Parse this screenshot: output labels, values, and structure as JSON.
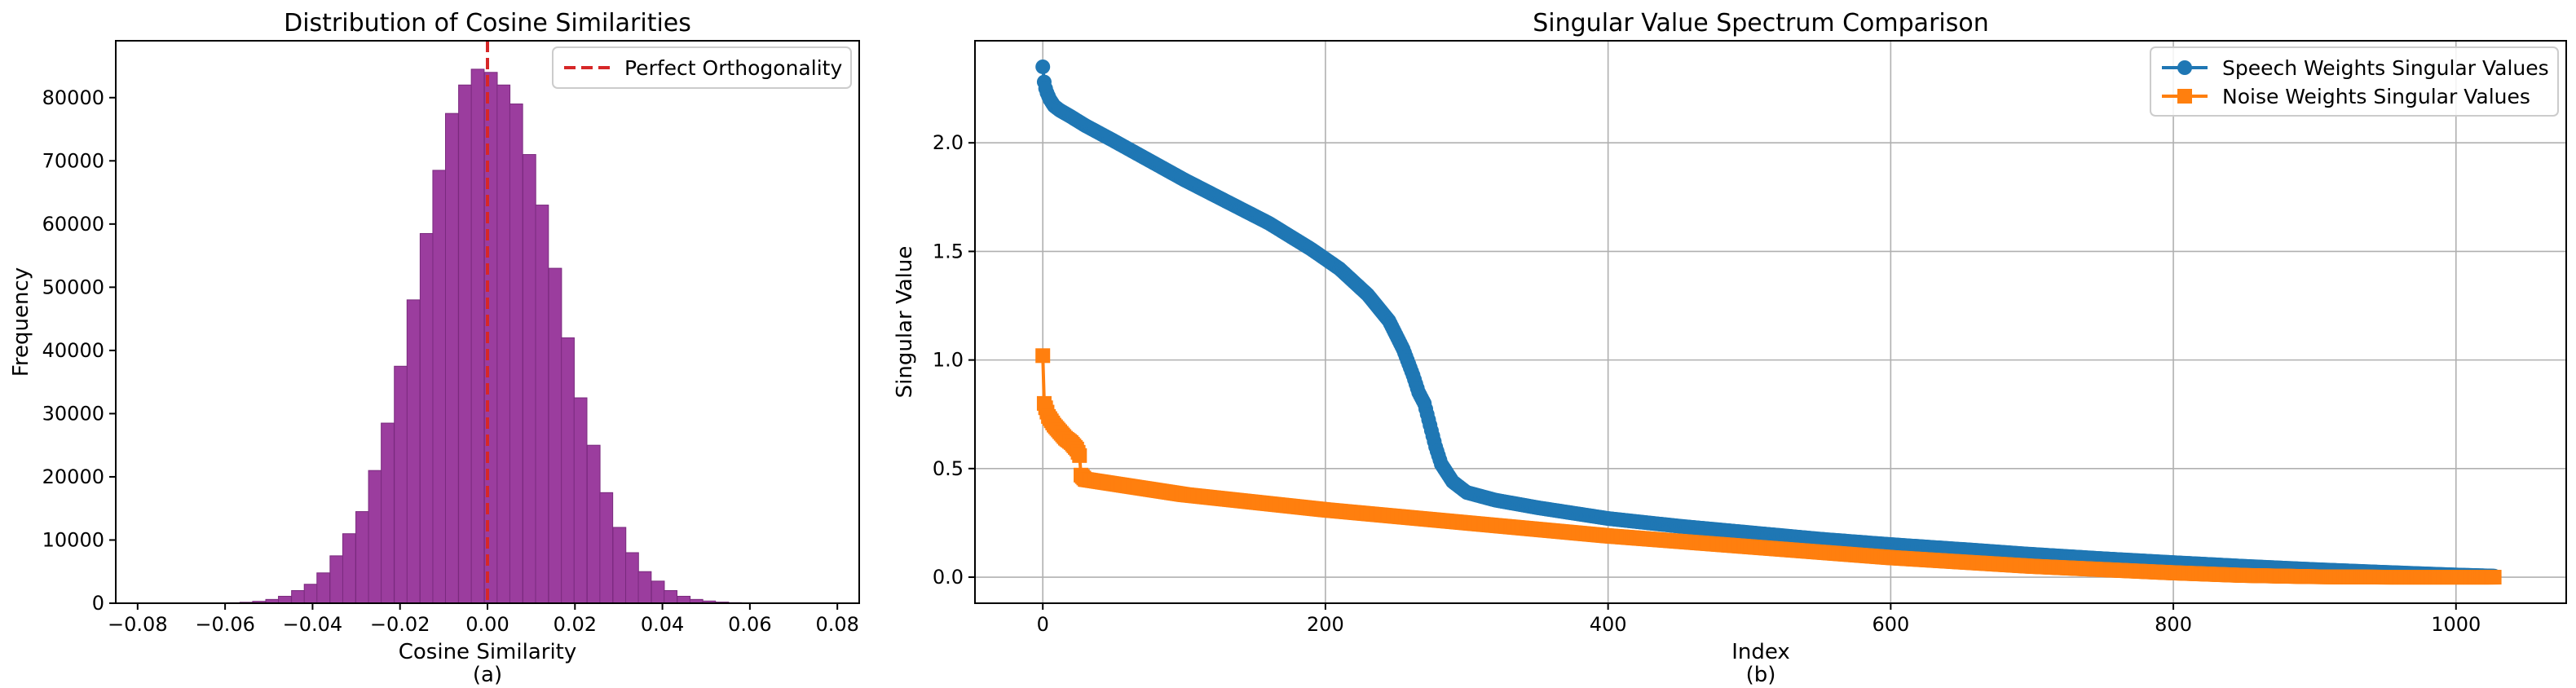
{
  "chart_data": [
    {
      "id": "a",
      "type": "bar",
      "title": "Distribution of Cosine Similarities",
      "xlabel": "Cosine Similarity",
      "caption": "(a)",
      "ylabel": "Frequency",
      "xlim": [
        -0.085,
        0.085
      ],
      "ylim": [
        0,
        89000
      ],
      "xticks": [
        -0.08,
        -0.06,
        -0.04,
        -0.02,
        0.0,
        0.02,
        0.04,
        0.06,
        0.08
      ],
      "xtick_labels": [
        "−0.08",
        "−0.06",
        "−0.04",
        "−0.02",
        "0.00",
        "0.02",
        "0.04",
        "0.06",
        "0.08"
      ],
      "yticks": [
        0,
        10000,
        20000,
        30000,
        40000,
        50000,
        60000,
        70000,
        80000
      ],
      "ytick_labels": [
        "0",
        "10000",
        "20000",
        "30000",
        "40000",
        "50000",
        "60000",
        "70000",
        "80000"
      ],
      "bin_width": 0.00294,
      "bins": [
        {
          "x": -0.0801,
          "y": 1
        },
        {
          "x": -0.0772,
          "y": 2
        },
        {
          "x": -0.0742,
          "y": 3
        },
        {
          "x": -0.0713,
          "y": 5
        },
        {
          "x": -0.0684,
          "y": 10
        },
        {
          "x": -0.0654,
          "y": 20
        },
        {
          "x": -0.0625,
          "y": 40
        },
        {
          "x": -0.0595,
          "y": 80
        },
        {
          "x": -0.0566,
          "y": 150
        },
        {
          "x": -0.0537,
          "y": 300
        },
        {
          "x": -0.0507,
          "y": 600
        },
        {
          "x": -0.0478,
          "y": 1100
        },
        {
          "x": -0.0448,
          "y": 2000
        },
        {
          "x": -0.0419,
          "y": 3000
        },
        {
          "x": -0.039,
          "y": 4800
        },
        {
          "x": -0.036,
          "y": 7500
        },
        {
          "x": -0.0331,
          "y": 11000
        },
        {
          "x": -0.0301,
          "y": 14500
        },
        {
          "x": -0.0272,
          "y": 21000
        },
        {
          "x": -0.0243,
          "y": 28500
        },
        {
          "x": -0.0213,
          "y": 37500
        },
        {
          "x": -0.0184,
          "y": 48000
        },
        {
          "x": -0.0154,
          "y": 58500
        },
        {
          "x": -0.0125,
          "y": 68500
        },
        {
          "x": -0.0096,
          "y": 77500
        },
        {
          "x": -0.0066,
          "y": 82000
        },
        {
          "x": -0.0037,
          "y": 84500
        },
        {
          "x": -0.0007,
          "y": 84000
        },
        {
          "x": 0.0022,
          "y": 82000
        },
        {
          "x": 0.0051,
          "y": 79000
        },
        {
          "x": 0.0081,
          "y": 71000
        },
        {
          "x": 0.011,
          "y": 63000
        },
        {
          "x": 0.014,
          "y": 53000
        },
        {
          "x": 0.0169,
          "y": 42000
        },
        {
          "x": 0.0198,
          "y": 32500
        },
        {
          "x": 0.0228,
          "y": 25000
        },
        {
          "x": 0.0257,
          "y": 17500
        },
        {
          "x": 0.0287,
          "y": 12000
        },
        {
          "x": 0.0316,
          "y": 8000
        },
        {
          "x": 0.0345,
          "y": 5000
        },
        {
          "x": 0.0375,
          "y": 3500
        },
        {
          "x": 0.0404,
          "y": 2000
        },
        {
          "x": 0.0434,
          "y": 1100
        },
        {
          "x": 0.0463,
          "y": 600
        },
        {
          "x": 0.0492,
          "y": 350
        },
        {
          "x": 0.0522,
          "y": 180
        },
        {
          "x": 0.0551,
          "y": 90
        },
        {
          "x": 0.0581,
          "y": 45
        },
        {
          "x": 0.061,
          "y": 20
        },
        {
          "x": 0.0639,
          "y": 10
        },
        {
          "x": 0.0669,
          "y": 5
        },
        {
          "x": 0.0698,
          "y": 3
        },
        {
          "x": 0.0728,
          "y": 1
        }
      ],
      "bar_color": "#9b3d9e",
      "bar_edge_color": "#7a2a7e",
      "reference_line": {
        "x": 0.0,
        "label": "Perfect Orthogonality",
        "color": "#d62728",
        "style": "dashed"
      },
      "legend_position": "top-right",
      "grid": false
    },
    {
      "id": "b",
      "type": "line",
      "title": "Singular Value Spectrum Comparison",
      "xlabel": "Index",
      "caption": "(b)",
      "ylabel": "Singular Value",
      "xlim": [
        -48,
        1078
      ],
      "ylim": [
        -0.12,
        2.47
      ],
      "xticks": [
        0,
        200,
        400,
        600,
        800,
        1000
      ],
      "xtick_labels": [
        "0",
        "200",
        "400",
        "600",
        "800",
        "1000"
      ],
      "yticks": [
        0.0,
        0.5,
        1.0,
        1.5,
        2.0
      ],
      "ytick_labels": [
        "0.0",
        "0.5",
        "1.0",
        "1.5",
        "2.0"
      ],
      "grid": true,
      "legend_position": "top-right",
      "series": [
        {
          "name": "Speech Weights Singular Values",
          "color": "#1f77b4",
          "marker": "circle",
          "x": [
            0,
            1,
            2,
            3,
            5,
            8,
            12,
            20,
            30,
            50,
            75,
            100,
            130,
            160,
            190,
            210,
            230,
            245,
            255,
            262,
            266,
            270,
            274,
            278,
            282,
            290,
            300,
            320,
            350,
            400,
            450,
            500,
            550,
            600,
            650,
            700,
            750,
            800,
            850,
            900,
            950,
            1000,
            1027
          ],
          "y": [
            2.35,
            2.28,
            2.25,
            2.23,
            2.2,
            2.17,
            2.15,
            2.12,
            2.08,
            2.01,
            1.92,
            1.83,
            1.73,
            1.63,
            1.51,
            1.42,
            1.3,
            1.18,
            1.05,
            0.93,
            0.85,
            0.8,
            0.7,
            0.6,
            0.52,
            0.44,
            0.39,
            0.355,
            0.32,
            0.27,
            0.235,
            0.205,
            0.175,
            0.15,
            0.128,
            0.105,
            0.085,
            0.067,
            0.05,
            0.035,
            0.022,
            0.01,
            0.005
          ]
        },
        {
          "name": "Noise Weights Singular Values",
          "color": "#ff7f0e",
          "marker": "square",
          "x": [
            0,
            1,
            2,
            3,
            4,
            6,
            8,
            12,
            16,
            20,
            24,
            26,
            27,
            30,
            40,
            60,
            100,
            150,
            200,
            300,
            400,
            500,
            600,
            700,
            800,
            850,
            900,
            950,
            1000,
            1027
          ],
          "y": [
            1.02,
            0.8,
            0.78,
            0.76,
            0.74,
            0.72,
            0.7,
            0.67,
            0.64,
            0.62,
            0.59,
            0.56,
            0.47,
            0.45,
            0.44,
            0.42,
            0.38,
            0.345,
            0.31,
            0.25,
            0.19,
            0.14,
            0.09,
            0.05,
            0.02,
            0.008,
            0.002,
            0.0,
            0.0,
            0.0
          ]
        }
      ]
    }
  ]
}
